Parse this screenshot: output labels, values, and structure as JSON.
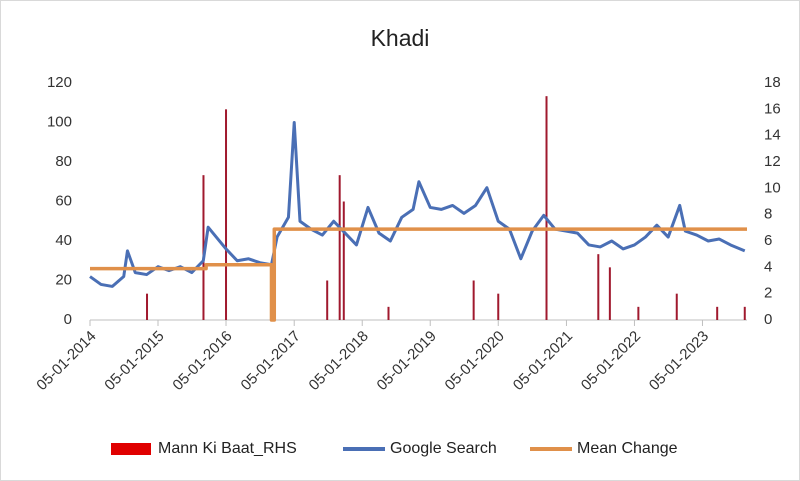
{
  "chart_data": {
    "type": "line",
    "title": "Khadi",
    "xlim": [
      "2014-01-05",
      "2023-09-01"
    ],
    "xticks": [
      {
        "value": "2014-01-05",
        "label": "05-01-2014"
      },
      {
        "value": "2015-01-05",
        "label": "05-01-2015"
      },
      {
        "value": "2016-01-05",
        "label": "05-01-2016"
      },
      {
        "value": "2017-01-05",
        "label": "05-01-2017"
      },
      {
        "value": "2018-01-05",
        "label": "05-01-2018"
      },
      {
        "value": "2019-01-05",
        "label": "05-01-2019"
      },
      {
        "value": "2020-01-05",
        "label": "05-01-2020"
      },
      {
        "value": "2021-01-05",
        "label": "05-01-2021"
      },
      {
        "value": "2022-01-05",
        "label": "05-01-2022"
      },
      {
        "value": "2023-01-05",
        "label": "05-01-2023"
      }
    ],
    "ylim": [
      0,
      120
    ],
    "yticks": [
      0,
      20,
      40,
      60,
      80,
      100,
      120
    ],
    "y2lim": [
      0,
      18
    ],
    "y2ticks": [
      0,
      2,
      4,
      6,
      8,
      10,
      12,
      14,
      16,
      18
    ],
    "series": [
      {
        "name": "Mann Ki Baat_RHS",
        "type": "bar",
        "axis": "y2",
        "color": "#a0192e",
        "x": [
          "2014-11-07",
          "2015-09-06",
          "2016-01-05",
          "2017-07-01",
          "2017-09-06",
          "2017-09-28",
          "2018-05-26",
          "2019-08-26",
          "2020-01-05",
          "2020-09-20",
          "2021-06-25",
          "2021-08-26",
          "2022-01-26",
          "2022-08-20",
          "2023-03-25",
          "2023-08-20"
        ],
        "values": [
          2,
          11,
          16,
          3,
          11,
          9,
          1,
          3,
          2,
          17,
          5,
          4,
          1,
          2,
          1,
          1
        ]
      },
      {
        "name": "Google Search",
        "type": "line",
        "color": "#4a6fb5",
        "x": [
          "2014-01-05",
          "2014-03-05",
          "2014-05-05",
          "2014-07-05",
          "2014-07-25",
          "2014-09-05",
          "2014-11-05",
          "2015-01-05",
          "2015-03-05",
          "2015-05-05",
          "2015-07-05",
          "2015-09-05",
          "2015-10-01",
          "2016-01-05",
          "2016-03-05",
          "2016-05-05",
          "2016-07-05",
          "2016-09-05",
          "2016-10-05",
          "2016-12-05",
          "2017-01-05",
          "2017-02-05",
          "2017-04-05",
          "2017-06-05",
          "2017-08-05",
          "2017-10-05",
          "2017-12-05",
          "2018-02-05",
          "2018-04-05",
          "2018-06-05",
          "2018-08-05",
          "2018-10-05",
          "2018-11-05",
          "2019-01-05",
          "2019-03-05",
          "2019-05-05",
          "2019-07-05",
          "2019-09-05",
          "2019-11-05",
          "2020-01-05",
          "2020-03-05",
          "2020-05-05",
          "2020-07-05",
          "2020-09-05",
          "2020-11-05",
          "2021-01-05",
          "2021-03-05",
          "2021-05-05",
          "2021-07-05",
          "2021-09-05",
          "2021-11-05",
          "2022-01-05",
          "2022-03-05",
          "2022-05-05",
          "2022-07-05",
          "2022-09-05",
          "2022-10-05",
          "2022-12-05",
          "2023-02-05",
          "2023-04-05",
          "2023-06-05",
          "2023-08-20"
        ],
        "values": [
          22,
          18,
          17,
          22,
          35,
          24,
          23,
          27,
          25,
          27,
          24,
          30,
          47,
          36,
          30,
          31,
          29,
          28,
          42,
          52,
          100,
          50,
          46,
          43,
          50,
          44,
          38,
          57,
          44,
          40,
          52,
          56,
          70,
          57,
          56,
          58,
          54,
          58,
          67,
          50,
          46,
          31,
          45,
          53,
          46,
          45,
          44,
          38,
          37,
          40,
          36,
          38,
          42,
          48,
          42,
          58,
          45,
          43,
          40,
          41,
          38,
          35
        ]
      },
      {
        "name": "Mean Change",
        "type": "line",
        "color": "#e0904a",
        "x": [
          "2014-01-05",
          "2015-09-20",
          "2015-09-20",
          "2016-09-05",
          "2016-09-05",
          "2016-09-20",
          "2016-09-20",
          "2023-09-01"
        ],
        "values": [
          26,
          26,
          28,
          28,
          0,
          0,
          46,
          46
        ]
      }
    ]
  }
}
